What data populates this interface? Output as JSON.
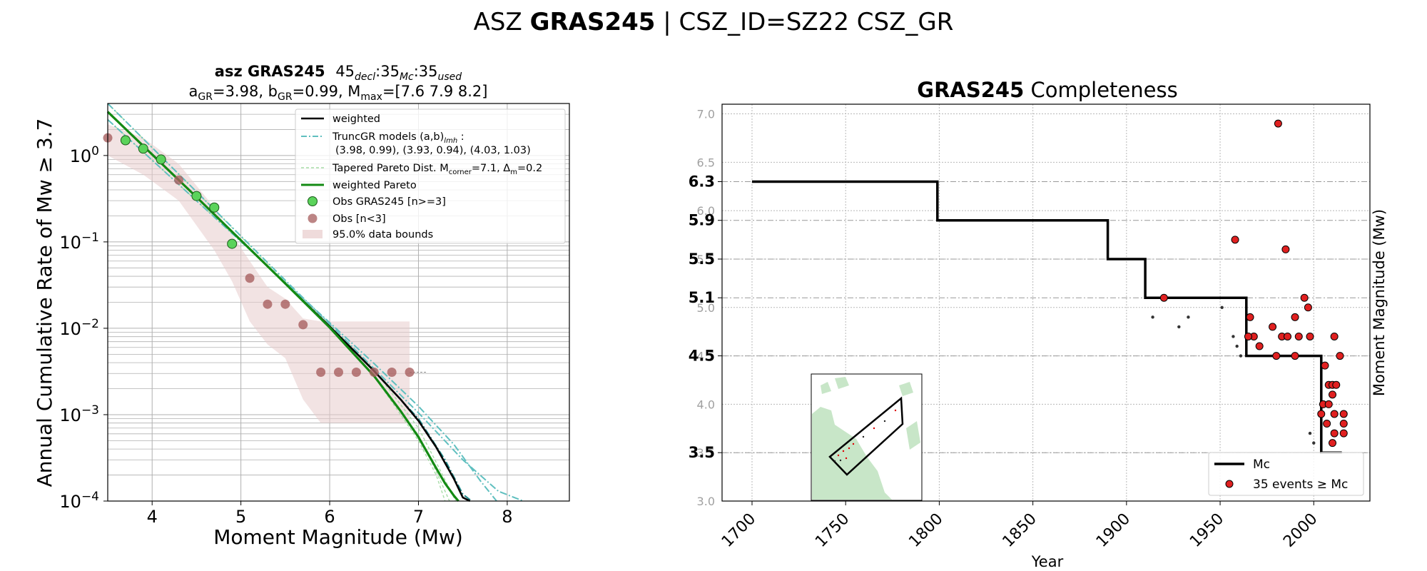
{
  "figure": {
    "title_prefix": "ASZ",
    "title_bold": "GRAS245",
    "title_suffix": " | CSZ_ID=SZ22 CSZ_GR"
  },
  "chart_data": [
    {
      "type": "line",
      "title_bold": "asz GRAS245",
      "title_rest": "45",
      "title_decl_sub": "decl",
      "title_mc_val": ":35",
      "title_mc_sub": "Mc",
      "title_used_val": ":35",
      "title_used_sub": "used",
      "params_a": "a",
      "params_a_sub": "GR",
      "params_a_val": "=3.98,  b",
      "params_b_sub": "GR",
      "params_b_val": "=0.99, M",
      "params_m_sub": "max",
      "params_m_val": "=[7.6 7.9 8.2]",
      "xlabel": "Moment Magnitude (Mw)",
      "ylabel": "Annual Cumulative Rate of Mw  ≥  3.7",
      "xlim": [
        3.5,
        8.7
      ],
      "ylim": [
        0.0001,
        4
      ],
      "yscale": "log",
      "xticks": [
        4,
        5,
        6,
        7,
        8
      ],
      "xtick_labels": [
        "4",
        "5",
        "6",
        "7",
        "8"
      ],
      "yticks": [
        0.0001,
        0.001,
        0.01,
        0.1,
        1
      ],
      "ytick_base": [
        "10",
        "10",
        "10",
        "10",
        "10"
      ],
      "ytick_exp": [
        "−4",
        "−3",
        "−2",
        "−1",
        "0"
      ],
      "legend": {
        "weighted": "weighted",
        "truncgr": "TruncGR models (a,b)",
        "truncgr_sub": "lmh",
        "truncgr_tail": " :",
        "truncgr_line2": "(3.98, 0.99), (3.93, 0.94), (4.03, 1.03)",
        "tapered": "Tapered Pareto Dist. M",
        "tapered_sub": "corner",
        "tapered_mid": "=7.1, Δ",
        "tapered_sub2": "m",
        "tapered_tail": "=0.2",
        "weighted_pareto": "weighted Pareto",
        "obs_green": "Obs GRAS245 [n>=3]",
        "obs_brown": "Obs [n<3]",
        "bounds": "95.0% data bounds"
      },
      "series": {
        "obs_green": {
          "x": [
            3.7,
            3.9,
            4.1,
            4.5,
            4.7,
            4.9
          ],
          "y": [
            1.5,
            1.2,
            0.9,
            0.34,
            0.25,
            0.095
          ]
        },
        "obs_brown": {
          "x": [
            3.5,
            4.3,
            5.1,
            5.3,
            5.5,
            5.7,
            5.9,
            6.1,
            6.3,
            6.5,
            6.7,
            6.9
          ],
          "y": [
            1.6,
            0.52,
            0.038,
            0.019,
            0.019,
            0.011,
            0.0031,
            0.0031,
            0.0031,
            0.0031,
            0.0031,
            0.0031
          ]
        },
        "bounds_upper": {
          "x": [
            3.5,
            3.9,
            4.3,
            4.7,
            5.1,
            5.3,
            5.5,
            5.7,
            5.9,
            6.9
          ],
          "y": [
            2.3,
            1.6,
            0.8,
            0.25,
            0.06,
            0.03,
            0.022,
            0.013,
            0.012,
            0.012
          ]
        },
        "bounds_lower": {
          "x": [
            3.5,
            3.9,
            4.3,
            4.7,
            4.9,
            5.1,
            5.3,
            5.5,
            5.7,
            5.9,
            6.9
          ],
          "y": [
            1.0,
            0.6,
            0.3,
            0.08,
            0.035,
            0.012,
            0.0065,
            0.0045,
            0.0015,
            0.0008,
            0.0008
          ]
        },
        "weighted": {
          "x": [
            3.5,
            4.5,
            5.5,
            6.0,
            6.5,
            6.8,
            7.0,
            7.2,
            7.4,
            7.5,
            7.58
          ],
          "y": [
            3.2,
            0.33,
            0.033,
            0.0105,
            0.0032,
            0.0015,
            0.00085,
            0.00042,
            0.00018,
            0.00011,
            0.0001
          ]
        },
        "weighted_pareto": {
          "x": [
            3.5,
            4.5,
            5.5,
            6.0,
            6.5,
            6.8,
            7.0,
            7.2,
            7.3,
            7.4,
            7.45
          ],
          "y": [
            3.2,
            0.33,
            0.033,
            0.0102,
            0.0028,
            0.0011,
            0.00055,
            0.00024,
            0.00016,
            0.000115,
            0.0001
          ]
        },
        "truncgr": [
          {
            "x": [
              3.5,
              4.5,
              5.5,
              6.0,
              6.5,
              7.0,
              7.3,
              7.5,
              7.6
            ],
            "y": [
              3.2,
              0.33,
              0.033,
              0.0105,
              0.0032,
              0.0009,
              0.0003,
              0.00012,
              0.0001
            ]
          },
          {
            "x": [
              3.5,
              4.5,
              5.5,
              6.0,
              6.5,
              7.0,
              7.4,
              7.7,
              7.88
            ],
            "y": [
              2.6,
              0.3,
              0.034,
              0.0116,
              0.0039,
              0.00125,
              0.00045,
              0.00017,
              0.0001
            ]
          },
          {
            "x": [
              3.5,
              4.5,
              5.5,
              6.0,
              6.5,
              7.0,
              7.5,
              7.9,
              8.18
            ],
            "y": [
              4.0,
              0.38,
              0.036,
              0.0112,
              0.0034,
              0.00105,
              0.0003,
              0.00013,
              0.0001
            ]
          }
        ],
        "tapered": [
          {
            "x": [
              3.5,
              4.5,
              5.5,
              6.0,
              6.5,
              7.0,
              7.2,
              7.35
            ],
            "y": [
              3.2,
              0.33,
              0.033,
              0.0102,
              0.0028,
              0.00058,
              0.00022,
              0.0001
            ]
          },
          {
            "x": [
              3.5,
              4.5,
              5.5,
              6.0,
              6.5,
              7.0,
              7.2,
              7.42
            ],
            "y": [
              2.6,
              0.3,
              0.034,
              0.011,
              0.0033,
              0.0007,
              0.00028,
              0.0001
            ]
          },
          {
            "x": [
              3.5,
              4.5,
              5.5,
              6.0,
              6.5,
              7.0,
              7.2,
              7.3
            ],
            "y": [
              4.0,
              0.38,
              0.035,
              0.0104,
              0.0028,
              0.0005,
              0.0002,
              0.0001
            ]
          }
        ]
      }
    },
    {
      "type": "scatter",
      "title_bold": "GRAS245",
      "title_rest": " Completeness",
      "xlabel": "Year",
      "ylabel": "Moment Magnitude (Mw)",
      "xlim": [
        1684,
        2030
      ],
      "ylim": [
        3.0,
        7.1
      ],
      "xticks": [
        1700,
        1750,
        1800,
        1850,
        1900,
        1950,
        2000
      ],
      "xtick_labels": [
        "1700",
        "1750",
        "1800",
        "1850",
        "1900",
        "1950",
        "2000"
      ],
      "yticks_minor": [
        3.0,
        3.5,
        4.0,
        4.5,
        5.0,
        5.5,
        6.0,
        6.5,
        7.0
      ],
      "yticks_minor_labels": [
        "3.0",
        "3.5",
        "4.0",
        "4.5",
        "5.0",
        "5.5",
        "6.0",
        "6.5",
        "7.0"
      ],
      "yticks_major": [
        3.5,
        4.5,
        5.1,
        5.5,
        5.9,
        6.3
      ],
      "yticks_major_labels": [
        "3.5",
        "4.5",
        "5.1",
        "5.5",
        "5.9",
        "6.3"
      ],
      "mc_steps": {
        "x": [
          1700,
          1799,
          1799,
          1890,
          1890,
          1910,
          1910,
          1964,
          1964,
          2004,
          2004,
          2015
        ],
        "y": [
          6.3,
          6.3,
          5.9,
          5.9,
          5.5,
          5.5,
          5.1,
          5.1,
          4.5,
          4.5,
          3.5,
          3.5
        ]
      },
      "legend": {
        "mc": "Mc",
        "events": "35 events  ≥  Mc"
      },
      "events_red": [
        {
          "x": 1920,
          "y": 5.1
        },
        {
          "x": 1958,
          "y": 5.7
        },
        {
          "x": 1981,
          "y": 6.9
        },
        {
          "x": 1985,
          "y": 5.6
        },
        {
          "x": 1966,
          "y": 4.9
        },
        {
          "x": 1978,
          "y": 4.8
        },
        {
          "x": 1983,
          "y": 4.7
        },
        {
          "x": 1986,
          "y": 4.7
        },
        {
          "x": 1990,
          "y": 4.9
        },
        {
          "x": 1992,
          "y": 4.7
        },
        {
          "x": 1995,
          "y": 5.1
        },
        {
          "x": 1997,
          "y": 5.0
        },
        {
          "x": 1998,
          "y": 4.7
        },
        {
          "x": 1968,
          "y": 4.7
        },
        {
          "x": 1965,
          "y": 4.7
        },
        {
          "x": 1971,
          "y": 4.6
        },
        {
          "x": 1980,
          "y": 4.5
        },
        {
          "x": 1990,
          "y": 4.5
        },
        {
          "x": 2006,
          "y": 4.4
        },
        {
          "x": 2008,
          "y": 4.2
        },
        {
          "x": 2010,
          "y": 4.2
        },
        {
          "x": 2012,
          "y": 4.2
        },
        {
          "x": 2010,
          "y": 4.1
        },
        {
          "x": 2005,
          "y": 4.0
        },
        {
          "x": 2008,
          "y": 4.0
        },
        {
          "x": 2011,
          "y": 3.9
        },
        {
          "x": 2016,
          "y": 3.9
        },
        {
          "x": 2016,
          "y": 3.8
        },
        {
          "x": 2007,
          "y": 3.8
        },
        {
          "x": 2011,
          "y": 3.7
        },
        {
          "x": 2016,
          "y": 3.7
        },
        {
          "x": 2010,
          "y": 3.6
        },
        {
          "x": 2011,
          "y": 4.7
        },
        {
          "x": 2014,
          "y": 4.5
        },
        {
          "x": 2004,
          "y": 3.9
        }
      ],
      "events_black": [
        {
          "x": 1914,
          "y": 4.9
        },
        {
          "x": 1928,
          "y": 4.8
        },
        {
          "x": 1933,
          "y": 4.9
        },
        {
          "x": 1951,
          "y": 5.0
        },
        {
          "x": 1957,
          "y": 4.7
        },
        {
          "x": 1959,
          "y": 4.6
        },
        {
          "x": 1961,
          "y": 4.5
        },
        {
          "x": 1998,
          "y": 3.7
        },
        {
          "x": 2000,
          "y": 3.6
        }
      ]
    }
  ]
}
